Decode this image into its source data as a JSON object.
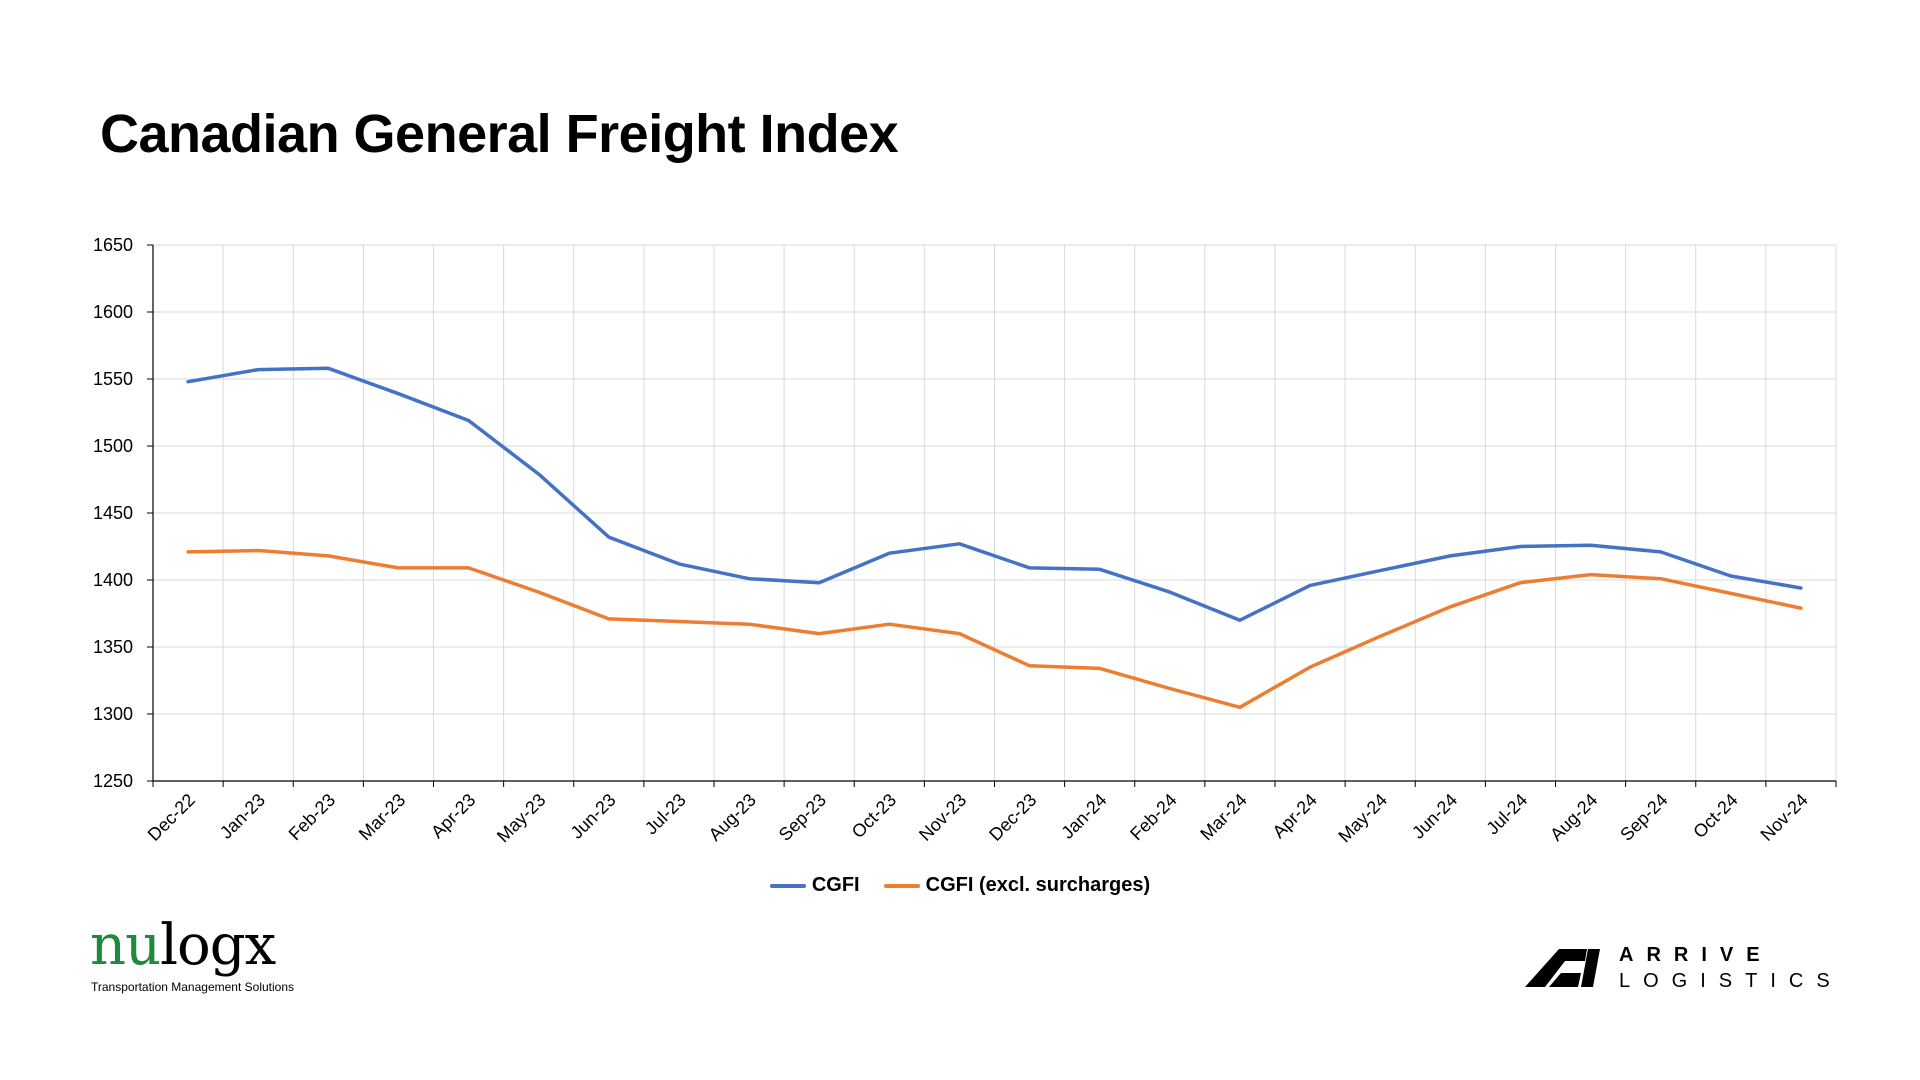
{
  "title": "Canadian General Freight Index",
  "colors": {
    "cgfi": "#4472c4",
    "cgfi_excl": "#ed7d31",
    "grid": "#d9d9d9",
    "nulogx_green": "#1e8a3c"
  },
  "chart_data": {
    "type": "line",
    "title": "Canadian General Freight Index",
    "categories": [
      "Dec-22",
      "Jan-23",
      "Feb-23",
      "Mar-23",
      "Apr-23",
      "May-23",
      "Jun-23",
      "Jul-23",
      "Aug-23",
      "Sep-23",
      "Oct-23",
      "Nov-23",
      "Dec-23",
      "Jan-24",
      "Feb-24",
      "Mar-24",
      "Apr-24",
      "May-24",
      "Jun-24",
      "Jul-24",
      "Aug-24",
      "Sep-24",
      "Oct-24",
      "Nov-24"
    ],
    "series": [
      {
        "name": "CGFI",
        "values": [
          1548,
          1557,
          1558,
          1539,
          1519,
          1479,
          1432,
          1412,
          1401,
          1398,
          1420,
          1427,
          1409,
          1408,
          1391,
          1370,
          1396,
          1407,
          1418,
          1425,
          1426,
          1421,
          1403,
          1394
        ]
      },
      {
        "name": "CGFI (excl. surcharges)",
        "values": [
          1421,
          1422,
          1418,
          1409,
          1409,
          1391,
          1371,
          1369,
          1367,
          1360,
          1367,
          1360,
          1336,
          1334,
          1319,
          1305,
          1335,
          1358,
          1380,
          1398,
          1404,
          1401,
          1390,
          1379
        ]
      }
    ],
    "ylim": [
      1250,
      1650
    ],
    "yticks": [
      1250,
      1300,
      1350,
      1400,
      1450,
      1500,
      1550,
      1600,
      1650
    ],
    "grid": true,
    "legend": "bottom-center"
  },
  "logos": {
    "nulogx_prefix": "nu",
    "nulogx_suffix": "logx",
    "nulogx_tagline": "Transportation Management Solutions",
    "arrive_line1": "ARRIVE",
    "arrive_line2": "LOGISTICS"
  }
}
